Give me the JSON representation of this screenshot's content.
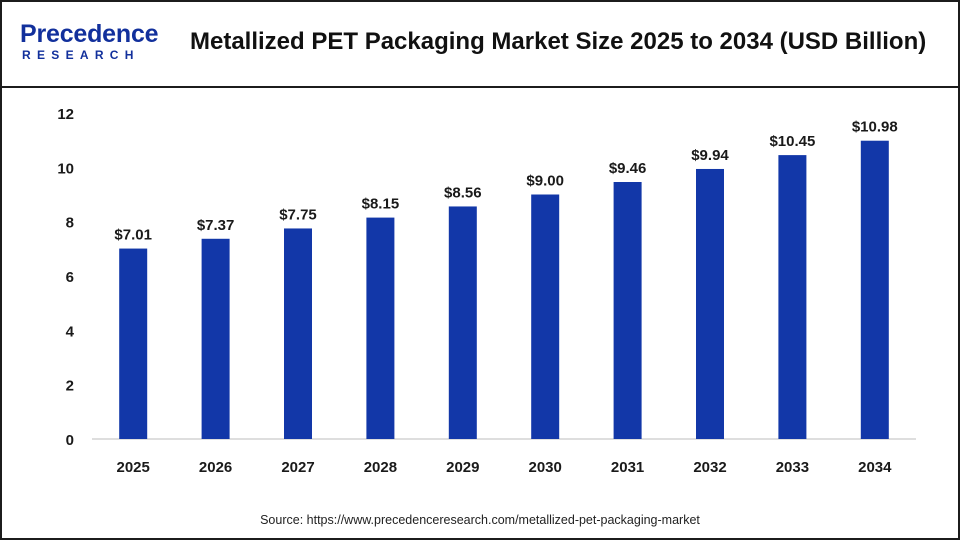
{
  "brand": {
    "name_main": "Precedence",
    "name_sub": "RESEARCH",
    "color": "#12309c"
  },
  "title": "Metallized PET Packaging Market Size 2025 to 2034 (USD Billion)",
  "source": "Source: https://www.precedenceresearch.com/metallized-pet-packaging-market",
  "chart_data": {
    "type": "bar",
    "title": "Metallized PET Packaging Market Size 2025 to 2034 (USD Billion)",
    "xlabel": "",
    "ylabel": "",
    "categories": [
      "2025",
      "2026",
      "2027",
      "2028",
      "2029",
      "2030",
      "2031",
      "2032",
      "2033",
      "2034"
    ],
    "values": [
      7.01,
      7.37,
      7.75,
      8.15,
      8.56,
      9.0,
      9.46,
      9.94,
      10.45,
      10.98
    ],
    "data_labels": [
      "$7.01",
      "$7.37",
      "$7.75",
      "$8.15",
      "$8.56",
      "$9.00",
      "$9.46",
      "$9.94",
      "$10.45",
      "$10.98"
    ],
    "ylim": [
      0,
      12
    ],
    "yticks": [
      "0",
      "2",
      "4",
      "6",
      "8",
      "10",
      "12"
    ],
    "grid": false,
    "legend": "none",
    "bar_color": "#1237a8"
  }
}
